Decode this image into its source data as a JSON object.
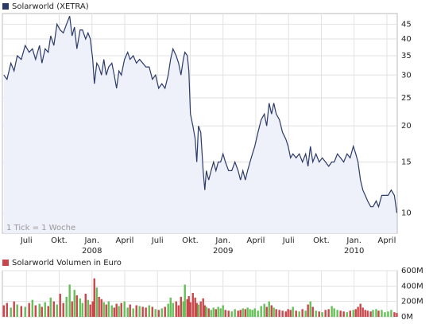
{
  "chart_data": [
    {
      "type": "line",
      "log_scale": true,
      "grid": true,
      "annotation": "1 Tick = 1 Woche",
      "series": [
        {
          "name": "Solarworld (XETRA)",
          "color": "#2b3a67",
          "fill": "#eef0fa",
          "values": [
            30,
            29,
            33,
            31,
            35,
            34,
            38,
            36,
            37,
            34,
            38,
            33,
            37,
            36,
            41,
            38,
            45,
            43,
            42,
            45,
            48,
            41,
            44,
            37,
            43,
            43,
            40,
            42,
            40,
            34,
            28,
            33,
            32,
            30,
            34,
            30,
            32,
            33,
            30,
            27,
            31,
            30,
            34,
            36,
            34,
            35,
            33,
            34,
            33,
            32,
            32,
            29,
            30,
            27,
            28,
            27,
            30,
            34,
            37,
            35,
            33,
            30,
            34,
            36,
            35,
            31,
            22,
            20,
            18,
            15,
            20,
            19,
            14,
            12,
            14,
            13,
            14,
            15,
            14,
            15,
            15,
            16,
            15,
            14,
            14,
            15,
            14,
            13,
            14,
            13,
            14,
            15,
            16,
            17,
            19,
            21,
            22,
            20,
            24,
            22,
            24,
            22,
            21,
            19,
            18,
            17,
            15.5,
            16,
            15.5,
            16,
            15,
            16,
            14.5,
            17,
            15,
            16,
            15,
            15.5,
            15,
            14.5,
            15,
            15,
            16,
            15.5,
            15,
            16,
            15.5,
            17,
            16,
            15,
            13,
            12,
            11.5,
            11,
            10.5,
            10.5,
            11,
            10.5,
            11.5,
            11.5,
            11.5,
            12,
            11.5,
            10
          ]
        }
      ],
      "x": [
        3.93,
        4.22,
        4.58,
        4.87,
        5.16,
        5.53,
        5.89,
        6.25,
        6.55,
        6.84,
        7.2,
        7.42,
        7.71,
        8.0,
        8.22,
        8.51,
        8.8,
        9.09,
        9.38,
        9.67,
        9.96,
        10.18,
        10.4,
        10.62,
        10.91,
        11.13,
        11.42,
        11.64,
        11.85,
        12.07,
        12.22,
        12.44,
        12.65,
        12.87,
        13.09,
        13.31,
        13.53,
        13.82,
        14.04,
        14.25,
        14.47,
        14.69,
        14.98,
        15.27,
        15.49,
        15.78,
        16.07,
        16.36,
        16.65,
        16.94,
        17.24,
        17.53,
        17.82,
        18.11,
        18.4,
        18.69,
        18.98,
        19.2,
        19.42,
        19.71,
        19.93,
        20.15,
        20.36,
        20.51,
        20.73,
        20.87,
        21.02,
        21.24,
        21.45,
        21.6,
        21.75,
        21.96,
        22.18,
        22.33,
        22.47,
        22.69,
        22.91,
        23.13,
        23.35,
        23.56,
        23.78,
        24.0,
        24.22,
        24.51,
        24.8,
        25.09,
        25.38,
        25.6,
        25.82,
        26.04,
        26.25,
        26.47,
        26.69,
        26.91,
        27.2,
        27.49,
        27.78,
        28.0,
        28.22,
        28.44,
        28.65,
        28.87,
        29.16,
        29.45,
        29.75,
        29.96,
        30.18,
        30.4,
        30.69,
        30.98,
        31.27,
        31.56,
        31.78,
        32.0,
        32.22,
        32.51,
        32.8,
        33.09,
        33.38,
        33.67,
        33.96,
        34.18,
        34.47,
        34.76,
        35.05,
        35.35,
        35.64,
        35.93,
        36.15,
        36.36,
        36.58,
        36.8,
        37.02,
        37.24,
        37.52,
        37.73,
        38.02,
        38.24,
        38.53,
        38.82,
        39.11,
        39.4,
        39.69,
        39.91
      ],
      "xlim": [
        3.8,
        39.95
      ],
      "xticks": [
        {
          "value": 6,
          "label": "Juli"
        },
        {
          "value": 9,
          "label": "Okt."
        },
        {
          "value": 12,
          "label": "Jan."
        },
        {
          "value": 15,
          "label": "April"
        },
        {
          "value": 18,
          "label": "Juli"
        },
        {
          "value": 21,
          "label": "Okt."
        },
        {
          "value": 24,
          "label": "Jan."
        },
        {
          "value": 27,
          "label": "April"
        },
        {
          "value": 30,
          "label": "Juli"
        },
        {
          "value": 33,
          "label": "Okt."
        },
        {
          "value": 36,
          "label": "Jan."
        },
        {
          "value": 39,
          "label": "April"
        }
      ],
      "year_labels": [
        {
          "value": 12,
          "label": "2008"
        },
        {
          "value": 24,
          "label": "2009"
        },
        {
          "value": 36,
          "label": "2010"
        }
      ],
      "ylim": [
        8.5,
        49
      ],
      "yticks": [
        10,
        15,
        20,
        25,
        30,
        35,
        40,
        45
      ]
    },
    {
      "type": "bar",
      "grid": true,
      "up_color": "#66c05a",
      "series": [
        {
          "name": "Solarworld Volumen in Euro",
          "color": "#c9474a",
          "values": [
            150,
            180,
            120,
            200,
            160,
            140,
            130,
            180,
            220,
            150,
            170,
            130,
            190,
            140,
            250,
            200,
            160,
            300,
            180,
            260,
            420,
            200,
            350,
            280,
            240,
            180,
            300,
            220,
            160,
            200,
            500,
            380,
            260,
            230,
            190,
            160,
            200,
            150,
            120,
            170,
            140,
            180,
            200,
            120,
            160,
            110,
            150,
            140,
            130,
            120,
            150,
            130,
            100,
            90,
            110,
            130,
            170,
            250,
            180,
            200,
            150,
            260,
            200,
            420,
            230,
            270,
            190,
            310,
            250,
            180,
            160,
            200,
            240,
            150,
            130,
            110,
            90,
            120,
            100,
            130,
            110,
            150,
            90,
            80,
            70,
            100,
            80,
            90,
            110,
            100,
            120,
            100,
            90,
            110,
            80,
            140,
            170,
            130,
            200,
            150,
            120,
            100,
            90,
            80,
            70,
            100,
            90,
            130,
            80,
            70,
            100,
            80,
            160,
            200,
            130,
            80,
            70,
            60,
            90,
            100,
            140,
            110,
            90,
            80,
            70,
            60,
            80,
            90,
            100,
            130,
            170,
            120,
            90,
            80,
            70,
            90,
            100,
            80,
            90,
            60,
            70,
            90,
            60,
            50
          ]
        }
      ],
      "ylim": [
        0,
        600
      ],
      "yticks": [
        {
          "value": 0,
          "label": "0M"
        },
        {
          "value": 200,
          "label": "200M"
        },
        {
          "value": 400,
          "label": "400M"
        },
        {
          "value": 600,
          "label": "600M"
        }
      ]
    }
  ]
}
